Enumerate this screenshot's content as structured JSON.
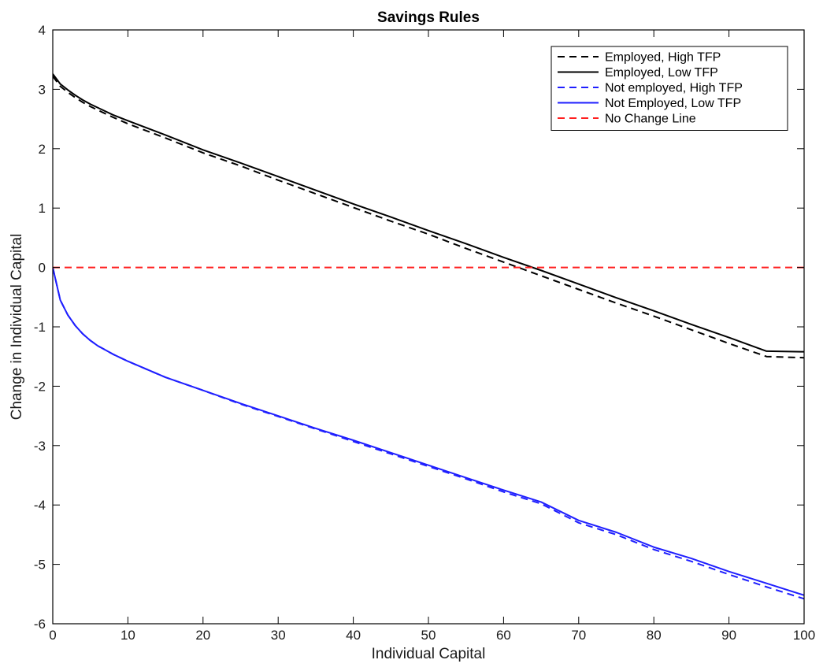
{
  "chart_data": {
    "type": "line",
    "title": "Savings Rules",
    "xlabel": "Individual Capital",
    "ylabel": "Change in Individual Capital",
    "xlim": [
      0,
      100
    ],
    "ylim": [
      -6,
      4
    ],
    "xticks": [
      0,
      10,
      20,
      30,
      40,
      50,
      60,
      70,
      80,
      90,
      100
    ],
    "yticks": [
      -6,
      -5,
      -4,
      -3,
      -2,
      -1,
      0,
      1,
      2,
      3,
      4
    ],
    "grid": false,
    "legend_position": "top-right",
    "x": [
      0,
      1,
      2,
      3,
      4,
      5,
      6,
      8,
      10,
      15,
      20,
      25,
      30,
      35,
      40,
      45,
      50,
      55,
      60,
      65,
      70,
      75,
      80,
      85,
      90,
      95,
      100
    ],
    "series": [
      {
        "name": "Employed, High TFP",
        "color": "#000000",
        "dash": "dashed",
        "values": [
          3.22,
          3.05,
          2.95,
          2.86,
          2.78,
          2.71,
          2.65,
          2.53,
          2.42,
          2.18,
          1.93,
          1.71,
          1.47,
          1.24,
          1.01,
          0.78,
          0.56,
          0.32,
          0.09,
          -0.14,
          -0.37,
          -0.6,
          -0.82,
          -1.05,
          -1.28,
          -1.5,
          -1.52
        ]
      },
      {
        "name": "Employed, Low TFP",
        "color": "#000000",
        "dash": "solid",
        "values": [
          3.26,
          3.09,
          2.99,
          2.9,
          2.82,
          2.75,
          2.69,
          2.57,
          2.47,
          2.23,
          1.98,
          1.76,
          1.53,
          1.3,
          1.07,
          0.85,
          0.62,
          0.4,
          0.17,
          -0.05,
          -0.28,
          -0.51,
          -0.73,
          -0.96,
          -1.18,
          -1.41,
          -1.42
        ]
      },
      {
        "name": "Not employed, High TFP",
        "color": "#1f1fff",
        "dash": "dashed",
        "values": [
          0.0,
          -0.55,
          -0.8,
          -0.98,
          -1.12,
          -1.23,
          -1.32,
          -1.46,
          -1.58,
          -1.85,
          -2.07,
          -2.3,
          -2.51,
          -2.72,
          -2.93,
          -3.14,
          -3.35,
          -3.56,
          -3.78,
          -3.98,
          -4.3,
          -4.5,
          -4.75,
          -4.95,
          -5.17,
          -5.38,
          -5.58
        ]
      },
      {
        "name": "Not Employed, Low TFP",
        "color": "#1f1fff",
        "dash": "solid",
        "values": [
          0.0,
          -0.55,
          -0.8,
          -0.98,
          -1.12,
          -1.23,
          -1.32,
          -1.46,
          -1.58,
          -1.85,
          -2.07,
          -2.29,
          -2.5,
          -2.71,
          -2.91,
          -3.12,
          -3.33,
          -3.54,
          -3.75,
          -3.95,
          -4.26,
          -4.46,
          -4.71,
          -4.9,
          -5.12,
          -5.32,
          -5.52
        ]
      },
      {
        "name": "No Change Line",
        "color": "#ff1f1f",
        "dash": "dashed",
        "values": [
          0,
          0,
          0,
          0,
          0,
          0,
          0,
          0,
          0,
          0,
          0,
          0,
          0,
          0,
          0,
          0,
          0,
          0,
          0,
          0,
          0,
          0,
          0,
          0,
          0,
          0,
          0
        ]
      }
    ]
  }
}
